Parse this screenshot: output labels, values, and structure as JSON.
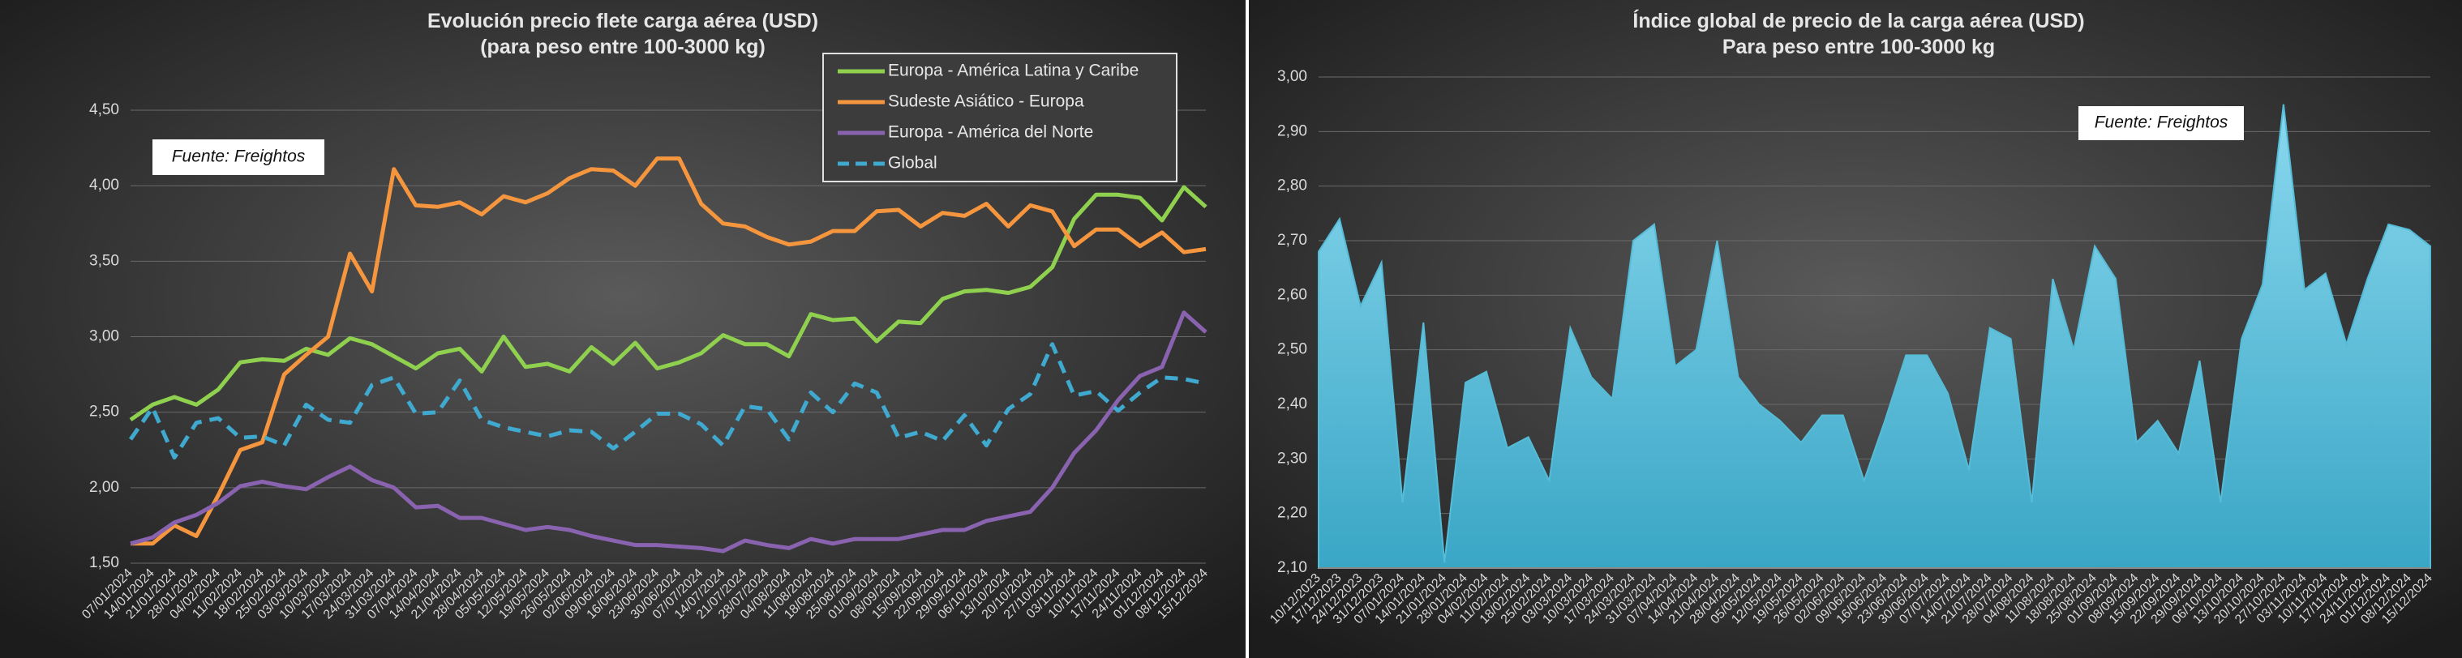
{
  "chart_data": [
    {
      "type": "line",
      "title": "Evolución precio flete carga  aérea (USD)",
      "subtitle": "(para peso entre 100-3000 kg)",
      "annotation": "Fuente: Freightos",
      "legend": "upper right",
      "grid": true,
      "categories": [
        "07/01/2024",
        "14/01/2024",
        "21/01/2024",
        "28/01/2024",
        "04/02/2024",
        "11/02/2024",
        "18/02/2024",
        "25/02/2024",
        "03/03/2024",
        "10/03/2024",
        "17/03/2024",
        "24/03/2024",
        "31/03/2024",
        "07/04/2024",
        "14/04/2024",
        "21/04/2024",
        "28/04/2024",
        "05/05/2024",
        "12/05/2024",
        "19/05/2024",
        "26/05/2024",
        "02/06/2024",
        "09/06/2024",
        "16/06/2024",
        "23/06/2024",
        "30/06/2024",
        "07/07/2024",
        "14/07/2024",
        "21/07/2024",
        "28/07/2024",
        "04/08/2024",
        "11/08/2024",
        "18/08/2024",
        "25/08/2024",
        "01/09/2024",
        "08/09/2024",
        "15/09/2024",
        "22/09/2024",
        "29/09/2024",
        "06/10/2024",
        "13/10/2024",
        "20/10/2024",
        "27/10/2024",
        "03/11/2024",
        "10/11/2024",
        "17/11/2024",
        "24/11/2024",
        "01/12/2024",
        "08/12/2024",
        "15/12/2024"
      ],
      "ylim": [
        1.5,
        4.5
      ],
      "yticks": [
        {
          "value": 1.5,
          "label": "1,50"
        },
        {
          "value": 2,
          "label": "2,00"
        },
        {
          "value": 2.5,
          "label": "2,50"
        },
        {
          "value": 3,
          "label": "3,00"
        },
        {
          "value": 3.5,
          "label": "3,50"
        },
        {
          "value": 4,
          "label": "4,00"
        },
        {
          "value": 4.5,
          "label": "4,50"
        }
      ],
      "series": [
        {
          "name": "Europa - América Latina y Caribe",
          "color": "#8fd14f",
          "style": "solid",
          "values": [
            2.45,
            2.55,
            2.6,
            2.55,
            2.65,
            2.83,
            2.85,
            2.84,
            2.92,
            2.88,
            2.99,
            2.95,
            2.87,
            2.79,
            2.89,
            2.92,
            2.77,
            3.0,
            2.8,
            2.82,
            2.77,
            2.93,
            2.82,
            2.96,
            2.79,
            2.83,
            2.89,
            3.01,
            2.95,
            2.95,
            2.87,
            3.15,
            3.11,
            3.12,
            2.97,
            3.1,
            3.09,
            3.25,
            3.3,
            3.31,
            3.29,
            3.33,
            3.46,
            3.78,
            3.94,
            3.94,
            3.92,
            3.77,
            3.99,
            3.86
          ]
        },
        {
          "name": "Sudeste Asiático - Europa",
          "color": "#f5963f",
          "style": "solid",
          "values": [
            1.63,
            1.63,
            1.75,
            1.68,
            1.95,
            2.25,
            2.3,
            2.75,
            2.88,
            3.0,
            3.55,
            3.3,
            4.11,
            3.87,
            3.86,
            3.89,
            3.81,
            3.93,
            3.89,
            3.95,
            4.05,
            4.11,
            4.1,
            4.0,
            4.18,
            4.18,
            3.88,
            3.75,
            3.73,
            3.66,
            3.61,
            3.63,
            3.7,
            3.7,
            3.83,
            3.84,
            3.73,
            3.82,
            3.8,
            3.88,
            3.73,
            3.87,
            3.83,
            3.6,
            3.71,
            3.71,
            3.6,
            3.69,
            3.56,
            3.58
          ]
        },
        {
          "name": "Europa - América del Norte",
          "color": "#8a63b0",
          "style": "solid",
          "values": [
            1.63,
            1.67,
            1.77,
            1.82,
            1.9,
            2.01,
            2.04,
            2.01,
            1.99,
            2.07,
            2.14,
            2.05,
            2.0,
            1.87,
            1.88,
            1.8,
            1.8,
            1.76,
            1.72,
            1.74,
            1.72,
            1.68,
            1.65,
            1.62,
            1.62,
            1.61,
            1.6,
            1.58,
            1.65,
            1.62,
            1.6,
            1.66,
            1.63,
            1.66,
            1.66,
            1.66,
            1.69,
            1.72,
            1.72,
            1.78,
            1.81,
            1.84,
            2.0,
            2.23,
            2.38,
            2.58,
            2.74,
            2.8,
            3.16,
            3.03
          ]
        },
        {
          "name": "Global",
          "color": "#3fa9cf",
          "style": "dashed",
          "values": [
            2.32,
            2.53,
            2.2,
            2.43,
            2.46,
            2.33,
            2.34,
            2.28,
            2.55,
            2.45,
            2.43,
            2.68,
            2.73,
            2.49,
            2.5,
            2.71,
            2.45,
            2.4,
            2.37,
            2.34,
            2.38,
            2.37,
            2.26,
            2.37,
            2.49,
            2.49,
            2.42,
            2.28,
            2.54,
            2.52,
            2.32,
            2.63,
            2.5,
            2.69,
            2.63,
            2.33,
            2.37,
            2.31,
            2.48,
            2.28,
            2.52,
            2.62,
            2.95,
            2.61,
            2.64,
            2.51,
            2.63,
            2.73,
            2.72,
            2.69
          ]
        }
      ]
    },
    {
      "type": "area",
      "title": "Índice global de precio de la carga aérea (USD)",
      "subtitle": "Para peso entre 100-3000 kg",
      "annotation": "Fuente: Freightos",
      "grid": true,
      "color": "#55bcd8",
      "categories": [
        "10/12/2023",
        "17/12/2023",
        "24/12/2023",
        "31/12/2023",
        "07/01/2024",
        "14/01/2024",
        "21/01/2024",
        "28/01/2024",
        "04/02/2024",
        "11/02/2024",
        "18/02/2024",
        "25/02/2024",
        "03/03/2024",
        "10/03/2024",
        "17/03/2024",
        "24/03/2024",
        "31/03/2024",
        "07/04/2024",
        "14/04/2024",
        "21/04/2024",
        "28/04/2024",
        "05/05/2024",
        "12/05/2024",
        "19/05/2024",
        "26/05/2024",
        "02/06/2024",
        "09/06/2024",
        "16/06/2024",
        "23/06/2024",
        "30/06/2024",
        "07/07/2024",
        "14/07/2024",
        "21/07/2024",
        "28/07/2024",
        "04/08/2024",
        "11/08/2024",
        "18/08/2024",
        "25/08/2024",
        "01/09/2024",
        "08/09/2024",
        "15/09/2024",
        "22/09/2024",
        "29/09/2024",
        "06/10/2024",
        "13/10/2024",
        "20/10/2024",
        "27/10/2024",
        "03/11/2024",
        "10/11/2024",
        "17/11/2024",
        "24/11/2024",
        "01/12/2024",
        "08/12/2024",
        "15/12/2024"
      ],
      "ylim": [
        2.1,
        3.0
      ],
      "yticks": [
        {
          "value": 2.1,
          "label": "2,10"
        },
        {
          "value": 2.2,
          "label": "2,20"
        },
        {
          "value": 2.3,
          "label": "2,30"
        },
        {
          "value": 2.4,
          "label": "2,40"
        },
        {
          "value": 2.5,
          "label": "2,50"
        },
        {
          "value": 2.6,
          "label": "2,60"
        },
        {
          "value": 2.7,
          "label": "2,70"
        },
        {
          "value": 2.8,
          "label": "2,80"
        },
        {
          "value": 2.9,
          "label": "2,90"
        },
        {
          "value": 3.0,
          "label": "3,00"
        }
      ],
      "values": [
        2.68,
        2.74,
        2.58,
        2.66,
        2.22,
        2.55,
        2.11,
        2.44,
        2.46,
        2.32,
        2.34,
        2.26,
        2.54,
        2.45,
        2.41,
        2.7,
        2.73,
        2.47,
        2.5,
        2.7,
        2.45,
        2.4,
        2.37,
        2.33,
        2.38,
        2.38,
        2.26,
        2.37,
        2.49,
        2.49,
        2.42,
        2.28,
        2.54,
        2.52,
        2.22,
        2.63,
        2.5,
        2.69,
        2.63,
        2.33,
        2.37,
        2.31,
        2.48,
        2.22,
        2.52,
        2.62,
        2.95,
        2.61,
        2.64,
        2.51,
        2.63,
        2.73,
        2.72,
        2.69
      ]
    }
  ]
}
